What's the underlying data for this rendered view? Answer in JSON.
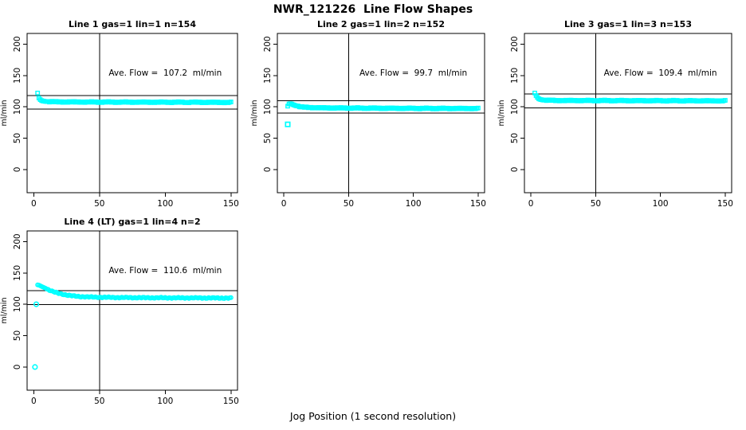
{
  "page_title": "NWR_121226  Line Flow Shapes",
  "xlabel": "Jog Position (1 second resolution)",
  "colors": {
    "marker": "#00FFFF",
    "axis": "#000000",
    "background": "#FFFFFF"
  },
  "chart_data": [
    {
      "type": "scatter",
      "title": "Line 1 gas=1 lin=1 n=154",
      "ylabel": "ml/min",
      "annotation": "Ave. Flow =  107.2  ml/min",
      "ave_flow": 107.2,
      "n": 154,
      "marker": "square",
      "x_ticks": [
        0,
        50,
        100,
        150
      ],
      "y_ticks": [
        0,
        50,
        100,
        150,
        200
      ],
      "xlim": [
        -5,
        155
      ],
      "ylim": [
        -37,
        217
      ],
      "ref_lines": {
        "h": [
          117.9,
          96.5
        ],
        "v": [
          50
        ]
      },
      "annotation_pos": {
        "x": 100,
        "y": 150
      },
      "series_x_range": [
        3,
        150
      ],
      "series_keypoints": [
        [
          3,
          122
        ],
        [
          4,
          114
        ],
        [
          5,
          111.5
        ],
        [
          6,
          110
        ],
        [
          7,
          109.3
        ],
        [
          9,
          108.6
        ],
        [
          12,
          108.2
        ],
        [
          20,
          107.8
        ],
        [
          40,
          107.6
        ],
        [
          80,
          107.4
        ],
        [
          120,
          107.2
        ],
        [
          150,
          107
        ]
      ],
      "outliers": []
    },
    {
      "type": "scatter",
      "title": "Line 2 gas=1 lin=2 n=152",
      "ylabel": "ml/min",
      "annotation": "Ave. Flow =  99.7  ml/min",
      "ave_flow": 99.7,
      "n": 152,
      "marker": "square",
      "x_ticks": [
        0,
        50,
        100,
        150
      ],
      "y_ticks": [
        0,
        50,
        100,
        150,
        200
      ],
      "xlim": [
        -5,
        155
      ],
      "ylim": [
        -37,
        217
      ],
      "ref_lines": {
        "h": [
          109.7,
          89.7
        ],
        "v": [
          50
        ]
      },
      "annotation_pos": {
        "x": 100,
        "y": 150
      },
      "series_x_range": [
        3,
        150
      ],
      "series_keypoints": [
        [
          3,
          101
        ],
        [
          4,
          104.5
        ],
        [
          5,
          105
        ],
        [
          6,
          104.5
        ],
        [
          7,
          103.5
        ],
        [
          9,
          102
        ],
        [
          11,
          101
        ],
        [
          13,
          100
        ],
        [
          16,
          99.3
        ],
        [
          20,
          98.8
        ],
        [
          30,
          98.3
        ],
        [
          50,
          98
        ],
        [
          90,
          97.6
        ],
        [
          120,
          97.4
        ],
        [
          150,
          97.3
        ]
      ],
      "outliers": [
        [
          3,
          72
        ]
      ]
    },
    {
      "type": "scatter",
      "title": "Line 3 gas=1 lin=3 n=153",
      "ylabel": "ml/min",
      "annotation": "Ave. Flow =  109.4  ml/min",
      "ave_flow": 109.4,
      "n": 153,
      "marker": "square",
      "x_ticks": [
        0,
        50,
        100,
        150
      ],
      "y_ticks": [
        0,
        50,
        100,
        150,
        200
      ],
      "xlim": [
        -5,
        155
      ],
      "ylim": [
        -37,
        217
      ],
      "ref_lines": {
        "h": [
          120.3,
          98.5
        ],
        "v": [
          50
        ]
      },
      "annotation_pos": {
        "x": 100,
        "y": 150
      },
      "series_x_range": [
        3,
        150
      ],
      "series_keypoints": [
        [
          3,
          122
        ],
        [
          4,
          118
        ],
        [
          5,
          115
        ],
        [
          6,
          113
        ],
        [
          7,
          112
        ],
        [
          9,
          111
        ],
        [
          12,
          110.5
        ],
        [
          20,
          110
        ],
        [
          40,
          110
        ],
        [
          80,
          109.8
        ],
        [
          150,
          109.5
        ]
      ],
      "outliers": []
    },
    {
      "type": "scatter",
      "title": "Line 4 (LT) gas=1 lin=4 n=2",
      "ylabel": "ml/min",
      "annotation": "Ave. Flow =  110.6  ml/min",
      "ave_flow": 110.6,
      "n": 2,
      "marker": "circle",
      "x_ticks": [
        0,
        50,
        100,
        150
      ],
      "y_ticks": [
        0,
        50,
        100,
        150,
        200
      ],
      "xlim": [
        -5,
        155
      ],
      "ylim": [
        -37,
        217
      ],
      "ref_lines": {
        "h": [
          121.7,
          99.5
        ],
        "v": [
          50
        ]
      },
      "annotation_pos": {
        "x": 100,
        "y": 150
      },
      "series_x_range": [
        3,
        150
      ],
      "series_keypoints": [
        [
          3,
          131
        ],
        [
          4,
          130.5
        ],
        [
          5,
          129.5
        ],
        [
          6,
          128.5
        ],
        [
          8,
          126.5
        ],
        [
          10,
          124.5
        ],
        [
          12,
          122.5
        ],
        [
          15,
          120
        ],
        [
          18,
          118
        ],
        [
          21,
          116.5
        ],
        [
          25,
          114.8
        ],
        [
          30,
          113.2
        ],
        [
          35,
          112.3
        ],
        [
          40,
          111.8
        ],
        [
          50,
          111.2
        ],
        [
          60,
          110.9
        ],
        [
          80,
          110.5
        ],
        [
          100,
          110.3
        ],
        [
          125,
          110.1
        ],
        [
          150,
          109.9
        ]
      ],
      "outliers": [
        [
          1,
          0
        ],
        [
          2,
          100
        ]
      ]
    }
  ]
}
